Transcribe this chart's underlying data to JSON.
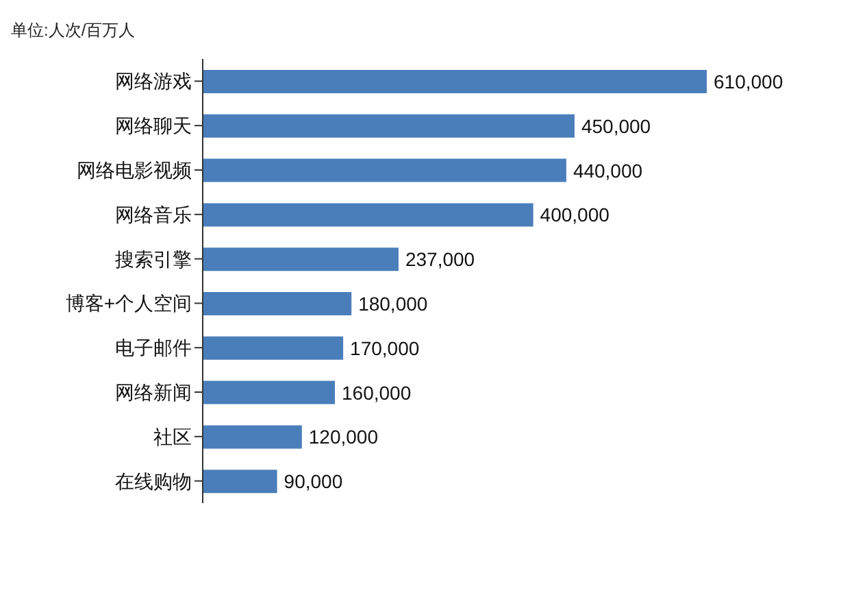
{
  "chart_data": {
    "type": "bar",
    "orientation": "horizontal",
    "subtitle": "单位:人次/百万人",
    "categories": [
      "网络游戏",
      "网络聊天",
      "网络电影视频",
      "网络音乐",
      "搜索引擎",
      "博客+个人空间",
      "电子邮件",
      "网络新闻",
      "社区",
      "在线购物"
    ],
    "values": [
      610000,
      450000,
      440000,
      400000,
      237000,
      180000,
      170000,
      160000,
      120000,
      90000
    ],
    "value_labels": [
      "610,000",
      "450,000",
      "440,000",
      "400,000",
      "237,000",
      "180,000",
      "170,000",
      "160,000",
      "120,000",
      "90,000"
    ],
    "color": "#4a7ebb",
    "grid": false,
    "legend": false
  }
}
